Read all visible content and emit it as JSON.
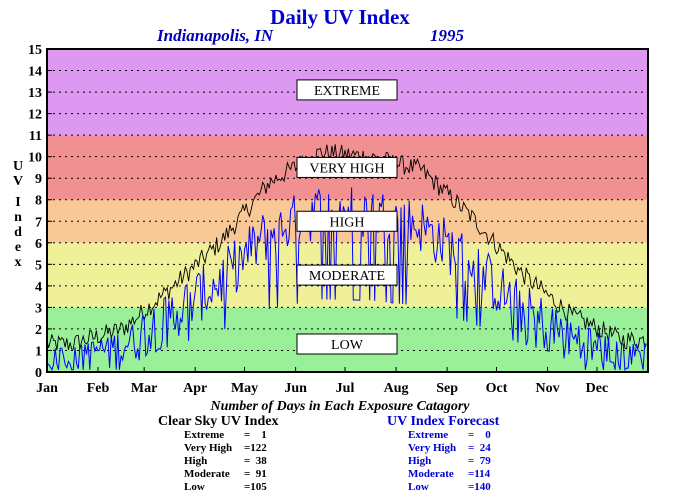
{
  "chart_data": {
    "type": "line",
    "title": "Daily UV Index",
    "subtitle_left": "Indianapolis, IN",
    "subtitle_right": "1995",
    "ylabel": "UV Index",
    "ylim": [
      0,
      15
    ],
    "yticks": [
      "0",
      "1",
      "2",
      "3",
      "4",
      "5",
      "6",
      "7",
      "8",
      "9",
      "10",
      "11",
      "12",
      "13",
      "14",
      "15"
    ],
    "months": [
      "Jan",
      "Feb",
      "Mar",
      "Apr",
      "May",
      "Jun",
      "Jul",
      "Aug",
      "Sep",
      "Oct",
      "Nov",
      "Dec"
    ],
    "grid": true,
    "bands": [
      {
        "label": "LOW",
        "from": 0,
        "to": 3,
        "color": "#99f099"
      },
      {
        "label": "MODERATE",
        "from": 3,
        "to": 6,
        "color": "#f0f099"
      },
      {
        "label": "HIGH",
        "from": 6,
        "to": 8,
        "color": "#f8c896"
      },
      {
        "label": "VERY HIGH",
        "from": 8,
        "to": 11,
        "color": "#f09090"
      },
      {
        "label": "EXTREME",
        "from": 11,
        "to": 15,
        "color": "#dd99f2"
      }
    ],
    "series": [
      {
        "key": "clear_sky",
        "color": "#000000",
        "monthly_values": [
          1.3,
          2.0,
          3.8,
          6.0,
          8.8,
          10.2,
          10.0,
          9.4,
          7.2,
          4.6,
          2.6,
          1.5
        ]
      },
      {
        "key": "forecast",
        "color": "#0000ff",
        "monthly_values": [
          0.8,
          1.3,
          2.6,
          4.2,
          6.5,
          7.5,
          7.4,
          6.8,
          5.0,
          2.9,
          1.5,
          0.9
        ]
      }
    ]
  },
  "caption": "Number of Days in Each Exposure Catagory",
  "clear_sky_stats": {
    "title": "Clear Sky UV Index",
    "rows": [
      {
        "label": "Extreme",
        "value": "=    1"
      },
      {
        "label": "Very High",
        "value": "=122"
      },
      {
        "label": "High",
        "value": "=  38"
      },
      {
        "label": "Moderate",
        "value": "=  91"
      },
      {
        "label": "Low",
        "value": "=105"
      }
    ]
  },
  "forecast_stats": {
    "title": "UV Index Forecast",
    "rows": [
      {
        "label": "Extreme",
        "value": "=    0"
      },
      {
        "label": "Very High",
        "value": "=  24"
      },
      {
        "label": "High",
        "value": "=  79"
      },
      {
        "label": "Moderate",
        "value": "=114"
      },
      {
        "label": "Low",
        "value": "=140"
      }
    ]
  },
  "colors": {
    "title": "#0000d0",
    "forecast_text": "#0000d0",
    "stats_text": "#000000"
  }
}
